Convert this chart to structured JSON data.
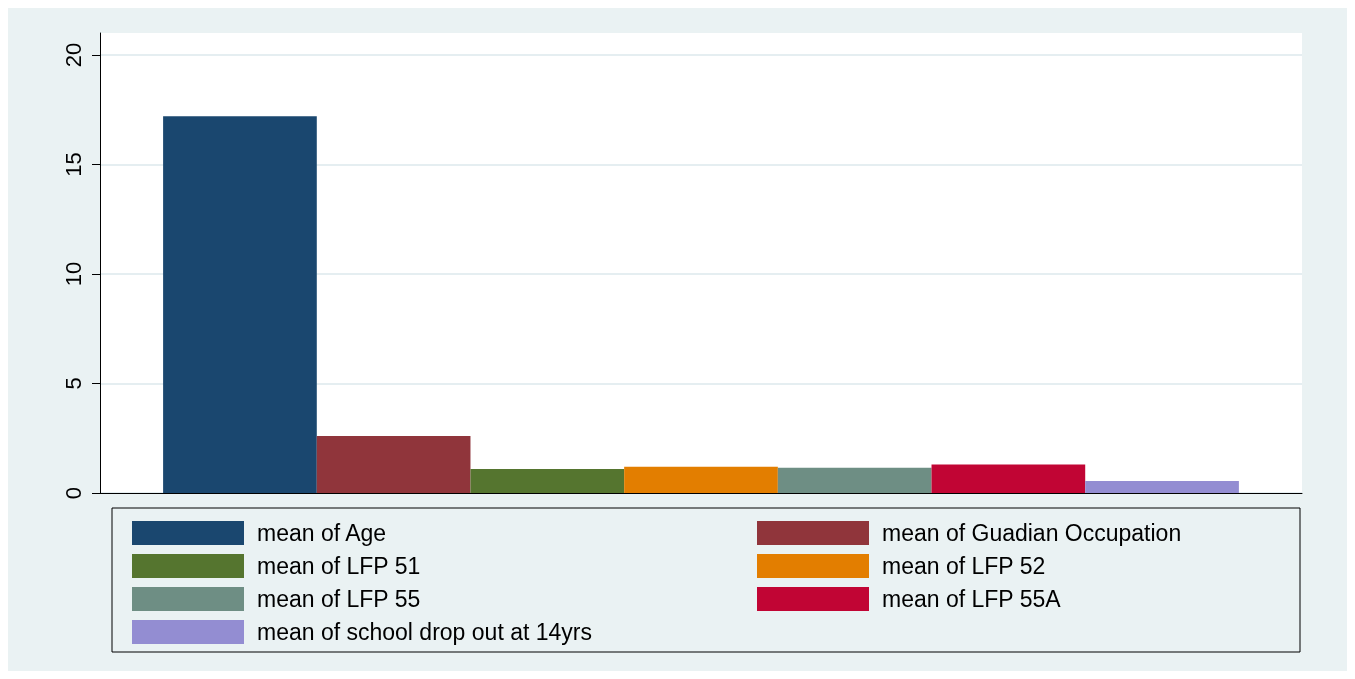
{
  "chart_data": {
    "type": "bar",
    "categories": [
      null
    ],
    "series": [
      {
        "name": "mean of Age",
        "color": "#1a476f",
        "values": [
          17.2
        ]
      },
      {
        "name": "mean of Guadian Occupation",
        "color": "#90353b",
        "values": [
          2.6
        ]
      },
      {
        "name": "mean of LFP 51",
        "color": "#55752f",
        "values": [
          1.1
        ]
      },
      {
        "name": "mean of LFP 52",
        "color": "#e37e00",
        "values": [
          1.2
        ]
      },
      {
        "name": "mean of LFP 55",
        "color": "#6e8e84",
        "values": [
          1.15
        ]
      },
      {
        "name": "mean of LFP 55A",
        "color": "#c10534",
        "values": [
          1.3
        ]
      },
      {
        "name": "mean of school drop out at 14yrs",
        "color": "#938dd2",
        "values": [
          0.55
        ]
      }
    ],
    "ylim": [
      0,
      21
    ],
    "yticks": [
      0,
      5,
      10,
      15,
      20
    ],
    "grid": "y",
    "legend": "bottom"
  }
}
